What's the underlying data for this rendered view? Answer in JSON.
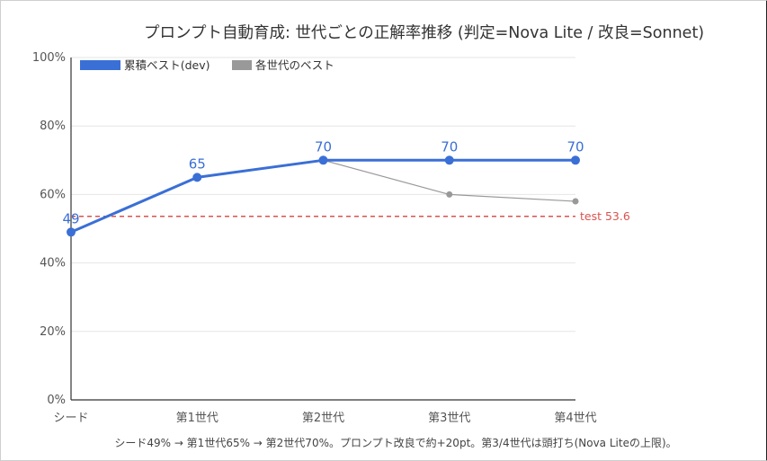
{
  "chart_data": {
    "type": "line",
    "title": "プロンプト自動育成: 世代ごとの正解率推移 (判定=Nova Lite / 改良=Sonnet)",
    "categories": [
      "シード",
      "第1世代",
      "第2世代",
      "第3世代",
      "第4世代"
    ],
    "y_ticks": [
      "0%",
      "20%",
      "40%",
      "60%",
      "80%",
      "100%"
    ],
    "ylim": [
      0,
      100
    ],
    "grid": true,
    "legend_position": "top-left",
    "series": [
      {
        "name": "累積ベスト(dev)",
        "color": "#3a6fd6",
        "values": [
          49,
          65,
          70,
          70,
          70
        ],
        "data_labels": [
          "49",
          "65",
          "70",
          "70",
          "70"
        ]
      },
      {
        "name": "各世代のベスト",
        "color": "#999999",
        "values": [
          null,
          null,
          70,
          60,
          58
        ]
      }
    ],
    "reference_line": {
      "label": "test 53.6",
      "value": 53.6,
      "color": "#d9534f"
    },
    "caption": "シード49% → 第1世代65% → 第2世代70%。プロンプト改良で約+20pt。第3/4世代は頭打ち(Nova Liteの上限)。"
  }
}
